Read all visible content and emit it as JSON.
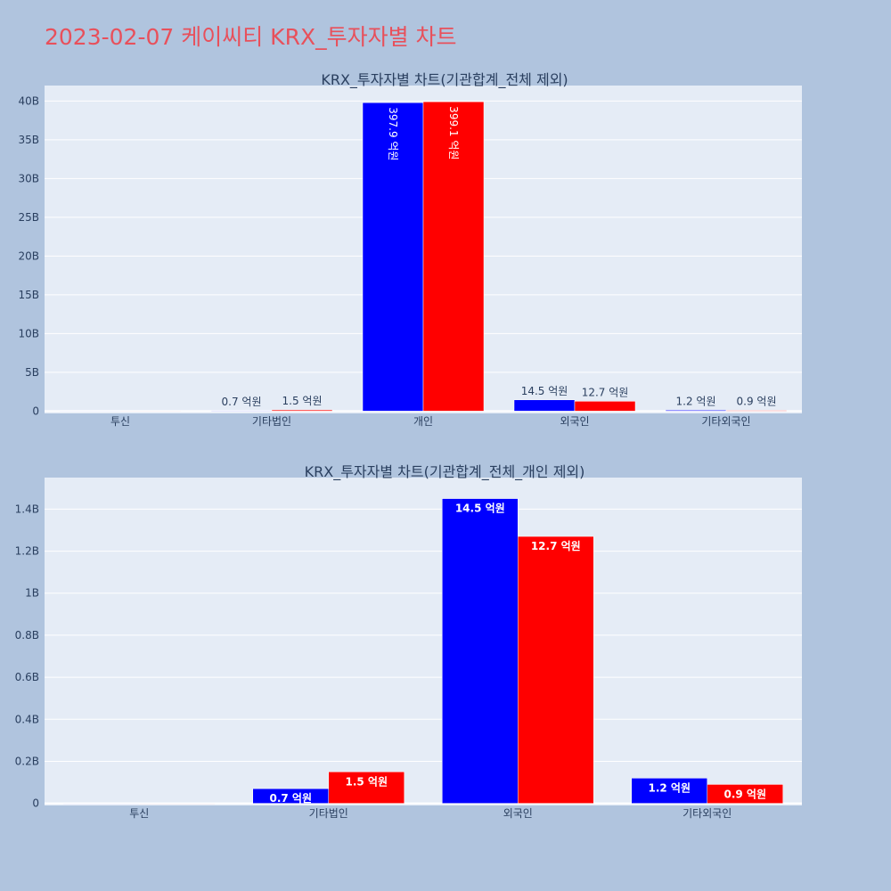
{
  "page_title": "2023-02-07 케이씨티 KRX_투자자별 차트",
  "colors": {
    "background": "#b0c4de",
    "plot_bg": "#e5ecf6",
    "grid": "#ffffff",
    "title": "#e8505b",
    "text": "#2a3f5f",
    "series_1": "#0000ff",
    "series_2": "#ff0000"
  },
  "chart_data": [
    {
      "type": "bar",
      "title": "KRX_투자자별 차트(기관합계_전체 제외)",
      "categories": [
        "투신",
        "기타법인",
        "개인",
        "외국인",
        "기타외국인"
      ],
      "series": [
        {
          "values": [
            0,
            70000000,
            39790000000,
            1450000000,
            120000000
          ],
          "labels": [
            "",
            "0.7 억원",
            "397.9 억원",
            "14.5 억원",
            "1.2 억원"
          ]
        },
        {
          "values": [
            0,
            150000000,
            39910000000,
            1270000000,
            90000000
          ],
          "labels": [
            "",
            "1.5 억원",
            "399.1 억원",
            "12.7 억원",
            "0.9 억원"
          ]
        }
      ],
      "ylim": [
        -300000000,
        42000000000
      ],
      "yticks": [
        0,
        5000000000,
        10000000000,
        15000000000,
        20000000000,
        25000000000,
        30000000000,
        35000000000,
        40000000000
      ],
      "ytick_labels": [
        "0",
        "5B",
        "10B",
        "15B",
        "20B",
        "25B",
        "30B",
        "35B",
        "40B"
      ],
      "grid": true,
      "legend": "none"
    },
    {
      "type": "bar",
      "title": "KRX_투자자별 차트(기관합계_전체_개인 제외)",
      "categories": [
        "투신",
        "기타법인",
        "외국인",
        "기타외국인"
      ],
      "series": [
        {
          "values": [
            0,
            70000000,
            1450000000,
            120000000
          ],
          "labels": [
            "",
            "0.7 억원",
            "14.5 억원",
            "1.2 억원"
          ]
        },
        {
          "values": [
            0,
            150000000,
            1270000000,
            90000000
          ],
          "labels": [
            "",
            "1.5 억원",
            "12.7 억원",
            "0.9 억원"
          ]
        }
      ],
      "ylim": [
        -10000000,
        1550000000
      ],
      "yticks": [
        0,
        200000000,
        400000000,
        600000000,
        800000000,
        1000000000,
        1200000000,
        1400000000
      ],
      "ytick_labels": [
        "0",
        "0.2B",
        "0.4B",
        "0.6B",
        "0.8B",
        "1B",
        "1.2B",
        "1.4B"
      ],
      "grid": true,
      "legend": "none"
    }
  ]
}
